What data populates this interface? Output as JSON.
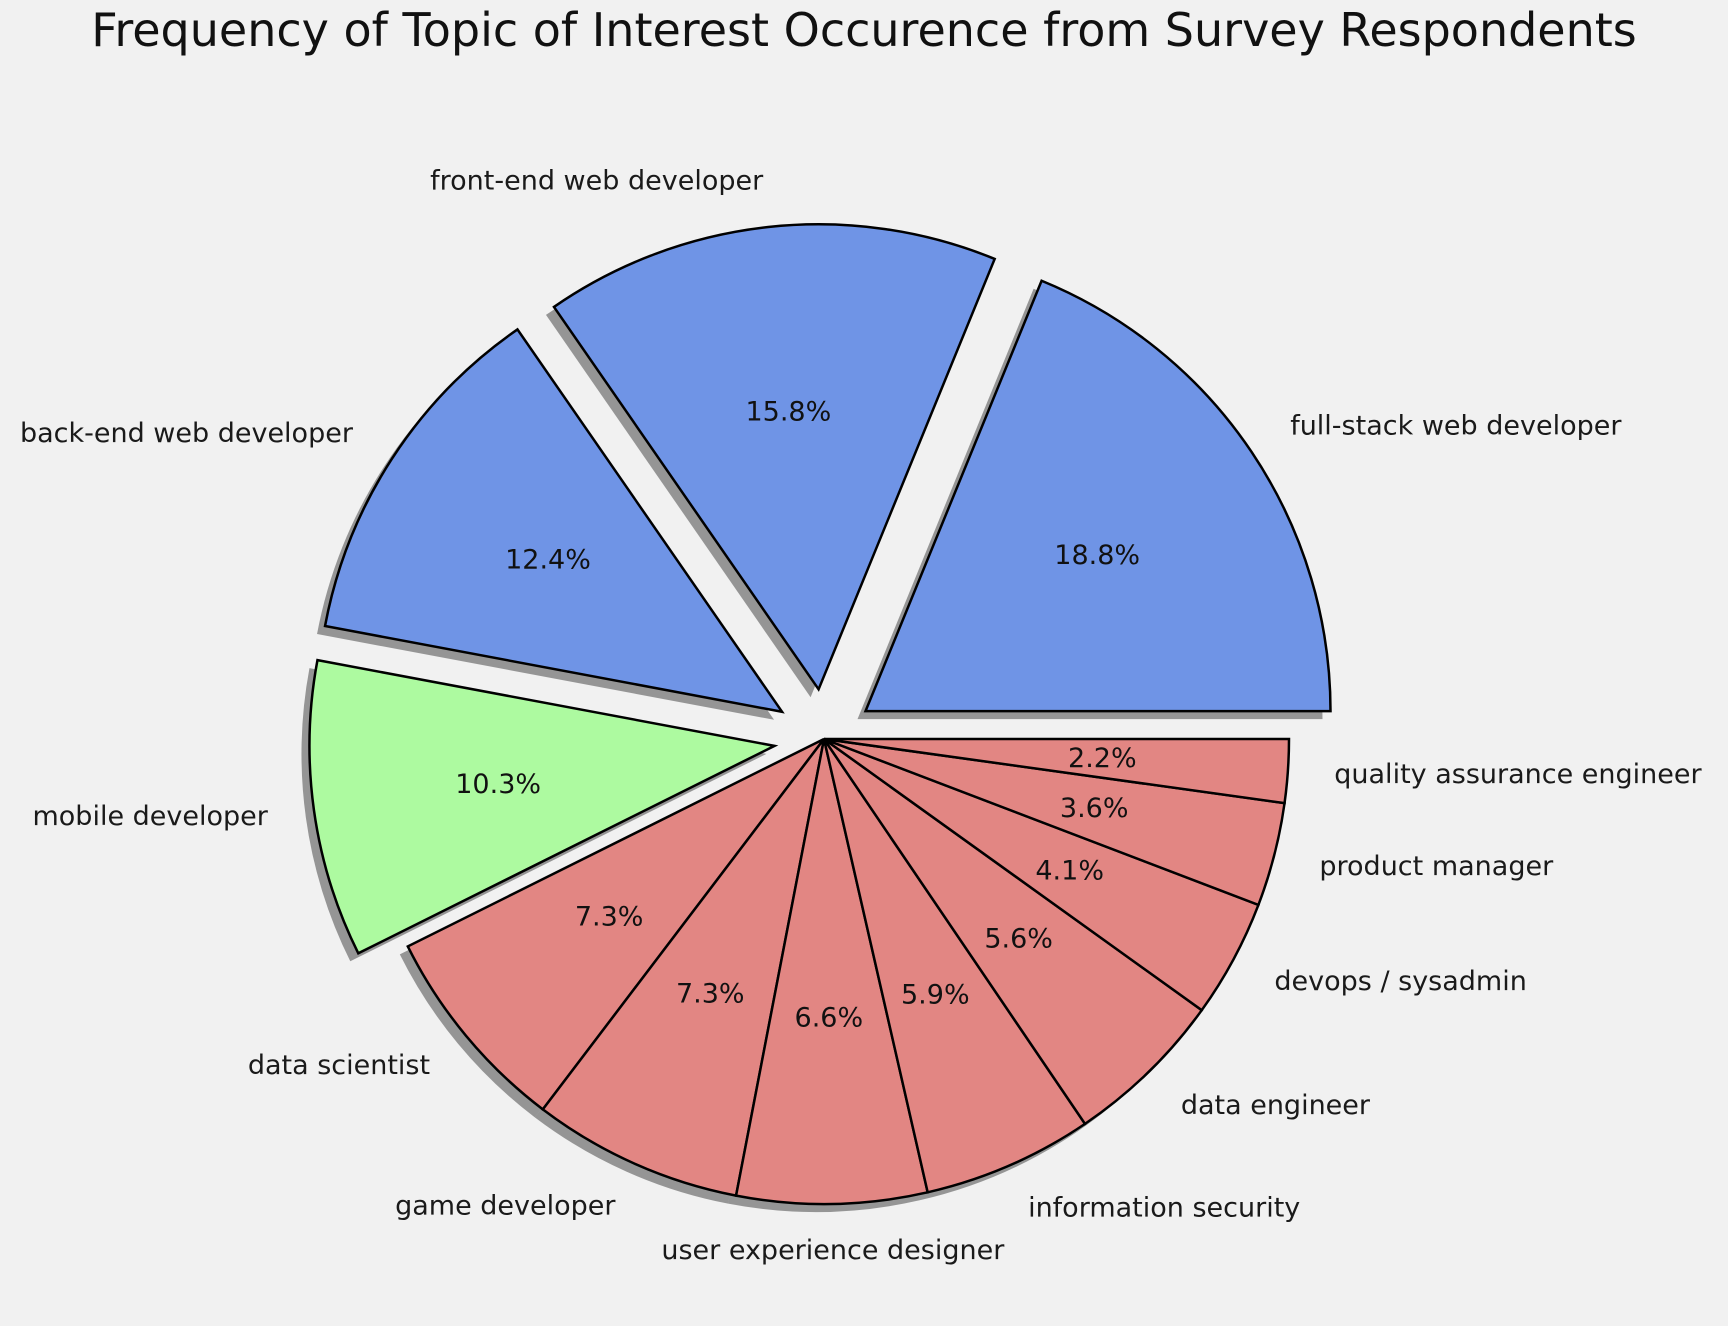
{
  "chart_data": {
    "type": "pie",
    "title": "Frequency of Topic of Interest Occurence from Survey Respondents",
    "start_angle_deg": 0,
    "direction": "counterclockwise",
    "shadow": true,
    "legend": "none",
    "slices": [
      {
        "label": "full-stack web developer",
        "value": 18.8,
        "pct_label": "18.8%",
        "color": "#6f94e6",
        "exploded": true
      },
      {
        "label": "front-end web developer",
        "value": 15.8,
        "pct_label": "15.8%",
        "color": "#6f94e6",
        "exploded": true
      },
      {
        "label": "back-end web developer",
        "value": 12.4,
        "pct_label": "12.4%",
        "color": "#6f94e6",
        "exploded": true
      },
      {
        "label": "mobile developer",
        "value": 10.3,
        "pct_label": "10.3%",
        "color": "#adfaa0",
        "exploded": true
      },
      {
        "label": "data scientist",
        "value": 7.3,
        "pct_label": "7.3%",
        "color": "#e28683",
        "exploded": false
      },
      {
        "label": "game developer",
        "value": 7.3,
        "pct_label": "7.3%",
        "color": "#e28683",
        "exploded": false
      },
      {
        "label": "user experience designer",
        "value": 6.6,
        "pct_label": "6.6%",
        "color": "#e28683",
        "exploded": false
      },
      {
        "label": "information security",
        "value": 5.9,
        "pct_label": "5.9%",
        "color": "#e28683",
        "exploded": false
      },
      {
        "label": "data engineer",
        "value": 5.6,
        "pct_label": "5.6%",
        "color": "#e28683",
        "exploded": false
      },
      {
        "label": "devops / sysadmin",
        "value": 4.1,
        "pct_label": "4.1%",
        "color": "#e28683",
        "exploded": false
      },
      {
        "label": "product manager",
        "value": 3.6,
        "pct_label": "3.6%",
        "color": "#e28683",
        "exploded": false
      },
      {
        "label": "quality assurance engineer",
        "value": 2.2,
        "pct_label": "2.2%",
        "color": "#e28683",
        "exploded": false
      }
    ]
  }
}
